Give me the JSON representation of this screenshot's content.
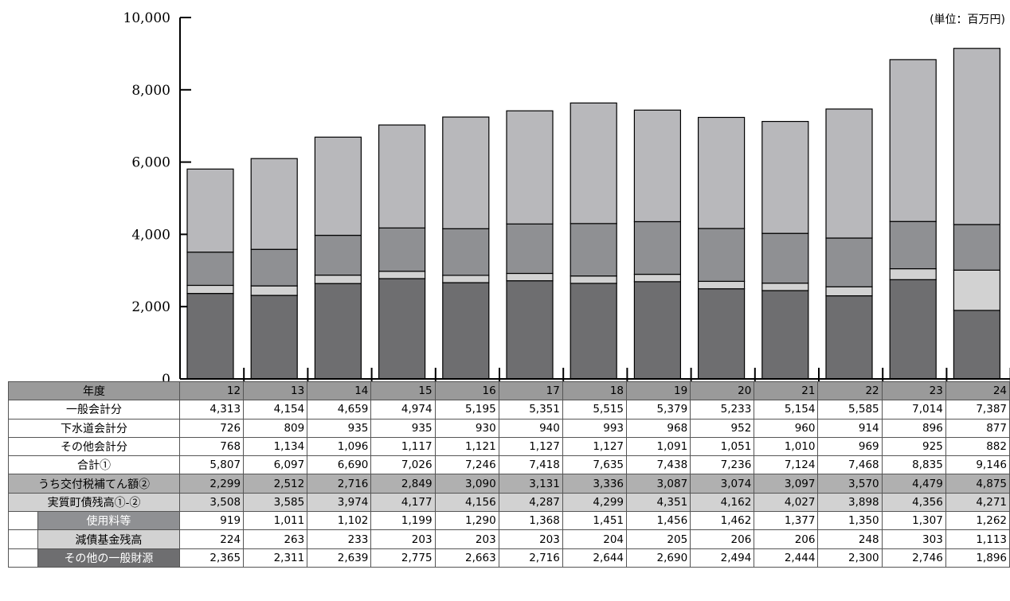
{
  "unit_label": "(単位：百万円)",
  "chart_data": {
    "type": "bar",
    "stacked": true,
    "categories": [
      "12",
      "13",
      "14",
      "15",
      "16",
      "17",
      "18",
      "19",
      "20",
      "21",
      "22",
      "23",
      "24"
    ],
    "ylim": [
      0,
      10000
    ],
    "yticks": [
      "0",
      "2,000",
      "4,000",
      "6,000",
      "8,000",
      "10,000"
    ],
    "ytick_values": [
      0,
      2000,
      4000,
      6000,
      8000,
      10000
    ],
    "series": [
      {
        "name": "その他の一般財源",
        "color": "#6e6e70",
        "values": [
          2365,
          2311,
          2639,
          2775,
          2663,
          2716,
          2644,
          2690,
          2494,
          2444,
          2300,
          2746,
          1896
        ]
      },
      {
        "name": "減債基金残高",
        "color": "#d2d2d2",
        "values": [
          224,
          263,
          233,
          203,
          203,
          203,
          204,
          205,
          206,
          206,
          248,
          303,
          1113
        ]
      },
      {
        "name": "使用料等",
        "color": "#8f9093",
        "values": [
          919,
          1011,
          1102,
          1199,
          1290,
          1368,
          1451,
          1456,
          1462,
          1377,
          1350,
          1307,
          1262
        ]
      },
      {
        "name": "うち交付税補てん額②",
        "color": "#b8b8bb",
        "values": [
          2299,
          2512,
          2716,
          2849,
          3090,
          3131,
          3336,
          3087,
          3074,
          3097,
          3570,
          4479,
          4875
        ]
      }
    ]
  },
  "table": {
    "header_label": "年度",
    "rows": [
      {
        "label": "一般会計分",
        "style": "plain",
        "indent": false,
        "values": [
          "4,313",
          "4,154",
          "4,659",
          "4,974",
          "5,195",
          "5,351",
          "5,515",
          "5,379",
          "5,233",
          "5,154",
          "5,585",
          "7,014",
          "7,387"
        ]
      },
      {
        "label": "下水道会計分",
        "style": "plain",
        "indent": false,
        "values": [
          "726",
          "809",
          "935",
          "935",
          "930",
          "940",
          "993",
          "968",
          "952",
          "960",
          "914",
          "896",
          "877"
        ]
      },
      {
        "label": "その他会計分",
        "style": "plain",
        "indent": false,
        "values": [
          "768",
          "1,134",
          "1,096",
          "1,117",
          "1,121",
          "1,127",
          "1,127",
          "1,091",
          "1,051",
          "1,010",
          "969",
          "925",
          "882"
        ]
      },
      {
        "label": "合計①",
        "style": "plain",
        "indent": false,
        "values": [
          "5,807",
          "6,097",
          "6,690",
          "7,026",
          "7,246",
          "7,418",
          "7,635",
          "7,438",
          "7,236",
          "7,124",
          "7,468",
          "8,835",
          "9,146"
        ]
      },
      {
        "label": "うち交付税補てん額②",
        "style": "shade-light",
        "indent": false,
        "values": [
          "2,299",
          "2,512",
          "2,716",
          "2,849",
          "3,090",
          "3,131",
          "3,336",
          "3,087",
          "3,074",
          "3,097",
          "3,570",
          "4,479",
          "4,875"
        ]
      },
      {
        "label": "実質町債残高①-②",
        "style": "shade-lighter",
        "indent": false,
        "values": [
          "3,508",
          "3,585",
          "3,974",
          "4,177",
          "4,156",
          "4,287",
          "4,299",
          "4,351",
          "4,162",
          "4,027",
          "3,898",
          "4,356",
          "4,271"
        ]
      },
      {
        "label": "使用料等",
        "style": "mid",
        "indent": true,
        "values": [
          "919",
          "1,011",
          "1,102",
          "1,199",
          "1,290",
          "1,368",
          "1,451",
          "1,456",
          "1,462",
          "1,377",
          "1,350",
          "1,307",
          "1,262"
        ]
      },
      {
        "label": "減債基金残高",
        "style": "light",
        "indent": true,
        "values": [
          "224",
          "263",
          "233",
          "203",
          "203",
          "203",
          "204",
          "205",
          "206",
          "206",
          "248",
          "303",
          "1,113"
        ]
      },
      {
        "label": "その他の一般財源",
        "style": "dark",
        "indent": true,
        "values": [
          "2,365",
          "2,311",
          "2,639",
          "2,775",
          "2,663",
          "2,716",
          "2,644",
          "2,690",
          "2,494",
          "2,444",
          "2,300",
          "2,746",
          "1,896"
        ]
      }
    ]
  }
}
